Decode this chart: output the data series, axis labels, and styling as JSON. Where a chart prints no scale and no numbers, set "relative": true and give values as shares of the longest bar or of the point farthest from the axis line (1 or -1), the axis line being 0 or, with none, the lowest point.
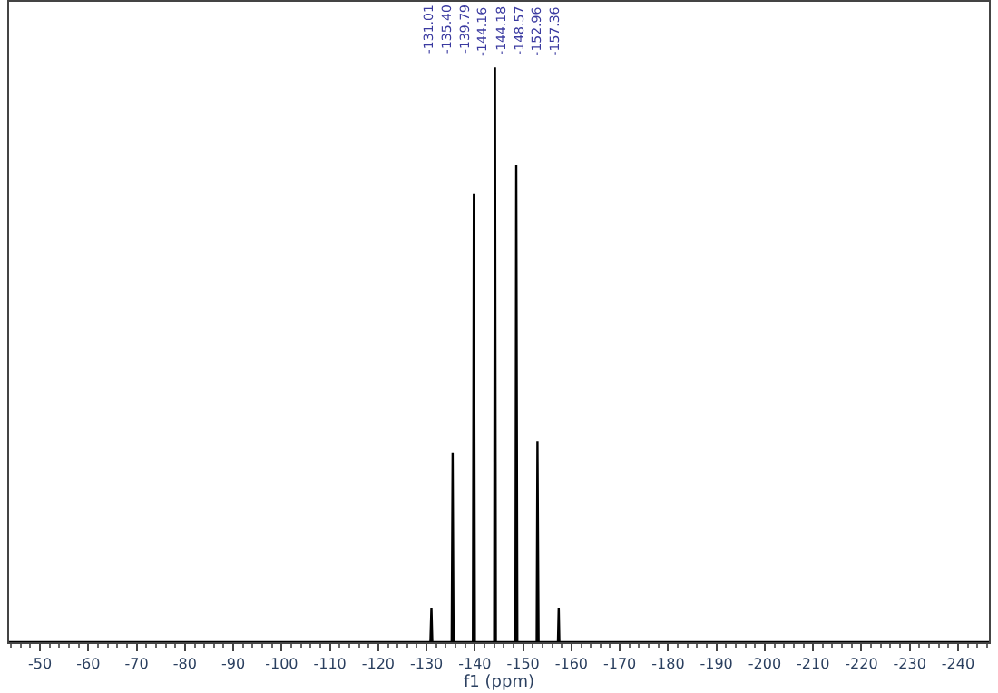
{
  "chart_data": {
    "type": "line",
    "relative": true,
    "xlabel": "f1 (ppm)",
    "xlim": [
      -43.6,
      -246.4
    ],
    "xticks": [
      -50,
      -60,
      -70,
      -80,
      -90,
      -100,
      -110,
      -120,
      -130,
      -140,
      -150,
      -160,
      -170,
      -180,
      -190,
      -200,
      -210,
      -220,
      -230,
      -240
    ],
    "tick_labels": "x",
    "series": [
      {
        "color": "#000000",
        "x": [
          -43.6,
          -130.8,
          -131.01,
          -131.2,
          -135.2,
          -135.4,
          -135.6,
          -139.6,
          -139.79,
          -140.0,
          -144.0,
          -144.17,
          -144.35,
          -148.4,
          -148.57,
          -148.8,
          -152.8,
          -152.96,
          -153.2,
          -157.2,
          -157.36,
          -157.5,
          -246.4
        ],
        "values": [
          0,
          0,
          0.06,
          0,
          0,
          0.33,
          0,
          0,
          0.78,
          0,
          0,
          1,
          0,
          0,
          0.83,
          0,
          0,
          0.35,
          0,
          0,
          0.06,
          0,
          0
        ]
      }
    ],
    "annotations": [
      "-131.01",
      "-135.40",
      "-139.79",
      "-144.16",
      "-144.18",
      "-148.57",
      "-152.96",
      "-157.36"
    ]
  }
}
